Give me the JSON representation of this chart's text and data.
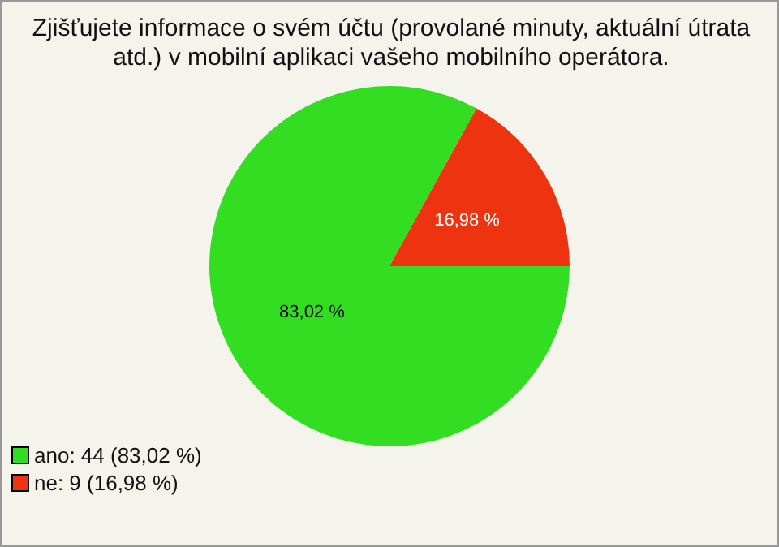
{
  "chart_data": {
    "type": "pie",
    "title": "Zjišťujete informace o svém účtu (provolané minuty, aktuální útrata atd.) v mobilní aplikaci vašeho mobilního operátora.",
    "categories": [
      "ano: 44 (83,02 %)",
      "ne: 9 (16,98 %)"
    ],
    "values": [
      83.02,
      16.98
    ],
    "colors": [
      "#33dd22",
      "#ee3311"
    ],
    "value_labels": [
      "83,02 %",
      "16,98 %"
    ],
    "legend": "bottom left"
  }
}
